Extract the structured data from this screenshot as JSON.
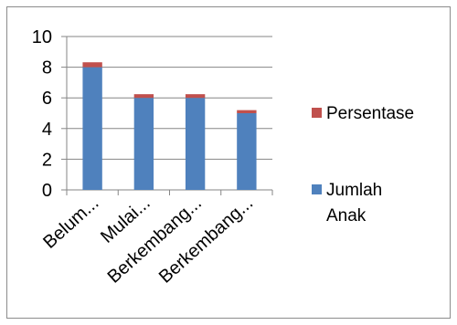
{
  "chart_data": {
    "type": "bar",
    "stacked": true,
    "categories": [
      "Belum...",
      "Mulai...",
      "Berkembang...",
      "Berkembang..."
    ],
    "series": [
      {
        "name": "Jumlah Anak",
        "values": [
          8,
          6,
          6,
          5
        ],
        "color": "#4f81bd"
      },
      {
        "name": "Persentase",
        "values": [
          0.32,
          0.24,
          0.24,
          0.2
        ],
        "color": "#c0504d"
      }
    ],
    "ylim": [
      0,
      10
    ],
    "yticks": [
      0,
      2,
      4,
      6,
      8,
      10
    ],
    "grid": true,
    "legend_position": "right",
    "legend": [
      {
        "lines": [
          "Persentase"
        ],
        "color": "#c0504d"
      },
      {
        "lines": [
          "Jumlah",
          "Anak"
        ],
        "color": "#4f81bd"
      }
    ]
  }
}
